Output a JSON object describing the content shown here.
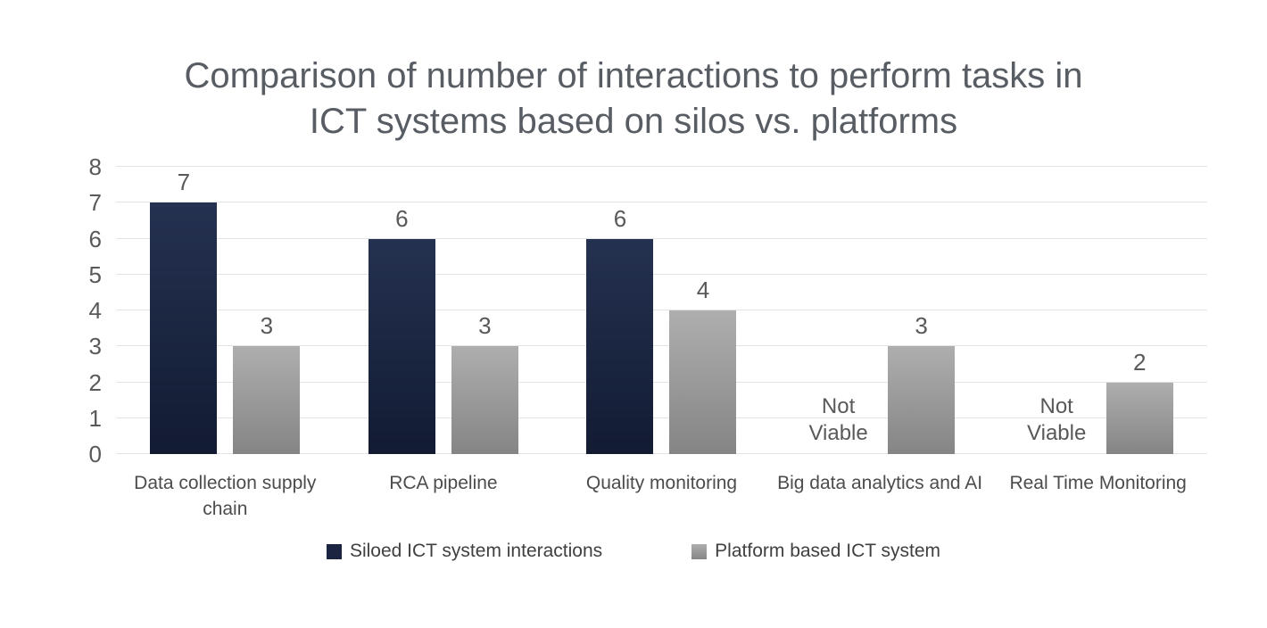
{
  "title": "Comparison of number of interactions to perform tasks in ICT systems based on silos vs. platforms",
  "chart_data": {
    "type": "bar",
    "title": "Comparison of number of interactions to perform tasks in ICT systems based on silos vs. platforms",
    "categories": [
      "Data collection supply chain",
      "RCA pipeline",
      "Quality monitoring",
      "Big data analytics and AI",
      "Real Time Monitoring"
    ],
    "series": [
      {
        "name": "Siloed ICT system interactions",
        "values": [
          7,
          6,
          6,
          null,
          null
        ],
        "color_top": "#243150",
        "color_bottom": "#121b32",
        "swatch_color": "#1b2440"
      },
      {
        "name": "Platform based ICT system",
        "values": [
          3,
          3,
          4,
          3,
          2
        ],
        "color_top": "#aeaeae",
        "color_bottom": "#858585",
        "swatch_color": "#9b9b9b"
      }
    ],
    "null_value_label": "Not Viable",
    "ylim": [
      0,
      8
    ],
    "yticks": [
      0,
      1,
      2,
      3,
      4,
      5,
      6,
      7,
      8
    ],
    "grid": true,
    "gridline_color": "#e3e3e6",
    "legend_position": "bottom",
    "text_color": "#595959"
  }
}
